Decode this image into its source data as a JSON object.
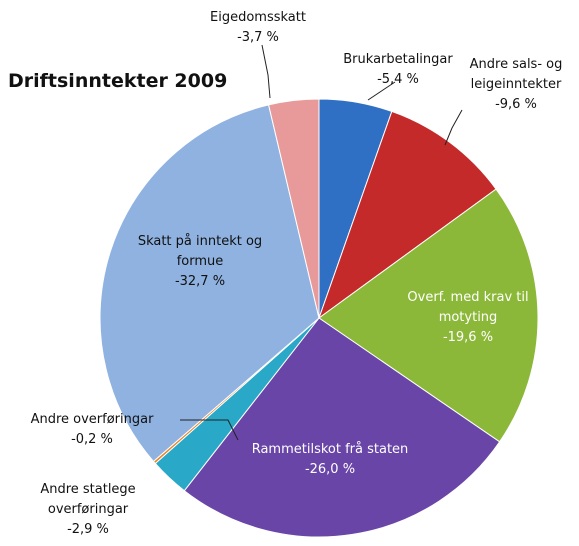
{
  "chart_data": {
    "type": "pie",
    "title": "Driftsinntekter 2009",
    "categories": [
      "Brukarbetalingar",
      "Andre sals- og leigeinntekter",
      "Overf. med krav til motyting",
      "Rammetilskot frå staten",
      "Andre statlege overføringar",
      "Andre overføringar",
      "Skatt på inntekt og formue",
      "Eigedomsskatt"
    ],
    "values": [
      -5.4,
      -9.6,
      -19.6,
      -26.0,
      -2.9,
      -0.2,
      -32.7,
      -3.7
    ],
    "value_labels": [
      "-5,4 %",
      "-9,6 %",
      "-19,6 %",
      "-26,0 %",
      "-2,9 %",
      "-0,2 %",
      "-32,7 %",
      "-3,7 %"
    ],
    "colors": [
      "#2f6fc4",
      "#c42a2a",
      "#8cb83a",
      "#6a45a8",
      "#2aa8c8",
      "#e8862a",
      "#8fb2e0",
      "#e89a9a"
    ]
  }
}
